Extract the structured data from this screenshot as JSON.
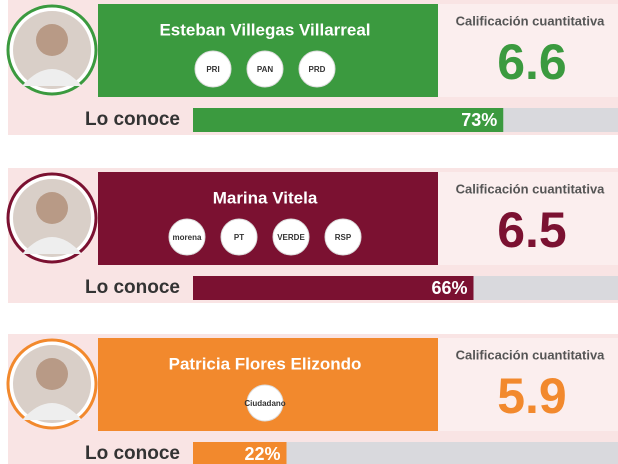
{
  "candidates": [
    {
      "name": "Esteban Villegas Villarreal",
      "color": "#3b9a3f",
      "parties": [
        "PRI",
        "PAN",
        "PRD"
      ],
      "rating_label": "Calificación cuantitativa",
      "rating": "6.6",
      "know_label": "Lo conoce",
      "know": {
        "value": 73,
        "label": "73%"
      }
    },
    {
      "name": "Marina Vitela",
      "color": "#7b1131",
      "parties": [
        "morena",
        "PT",
        "VERDE",
        "RSP"
      ],
      "rating_label": "Calificación cuantitativa",
      "rating": "6.5",
      "know_label": "Lo conoce",
      "know": {
        "value": 66,
        "label": "66%"
      }
    },
    {
      "name": "Patricia Flores Elizondo",
      "color": "#f2892d",
      "parties": [
        "Ciudadano"
      ],
      "rating_label": "Calificación cuantitativa",
      "rating": "5.9",
      "know_label": "Lo conoce",
      "know": {
        "value": 22,
        "label": "22%"
      }
    }
  ]
}
